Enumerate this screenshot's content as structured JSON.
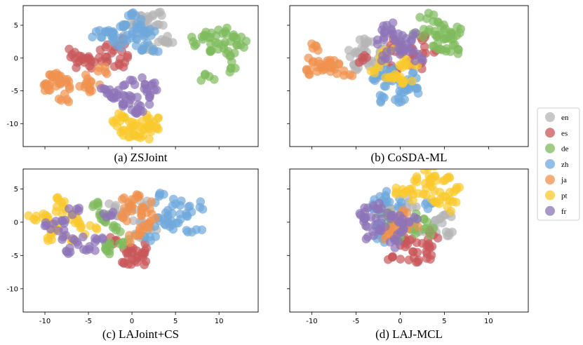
{
  "chart_data": {
    "type": "scatter",
    "shared": {
      "xlim": [
        -12.5,
        14.5
      ],
      "ylim": [
        -13.5,
        8
      ],
      "xticks": [
        "-10",
        "-5",
        "0",
        "5",
        "10"
      ],
      "yticks": [
        "5",
        "0",
        "-5",
        "-10"
      ],
      "xtick_values": [
        -10,
        -5,
        0,
        5,
        10
      ],
      "ytick_values": [
        5,
        0,
        -5,
        -10
      ]
    },
    "legend": {
      "placement": "right",
      "entries": [
        {
          "name": "en",
          "color": "#b5b5b5"
        },
        {
          "name": "es",
          "color": "#c9575a"
        },
        {
          "name": "de",
          "color": "#7fba5c"
        },
        {
          "name": "zh",
          "color": "#6fa8dc"
        },
        {
          "name": "ja",
          "color": "#f0914f"
        },
        {
          "name": "pt",
          "color": "#f9c92c"
        },
        {
          "name": "fr",
          "color": "#8d74b8"
        }
      ]
    },
    "panels": [
      {
        "caption": "(a) ZSJoint",
        "series": {
          "en": [
            [
              -1,
              3
            ],
            [
              0,
              5
            ],
            [
              2,
              6
            ],
            [
              3,
              5
            ],
            [
              3.5,
              3
            ],
            [
              1,
              6.5
            ],
            [
              2,
              4
            ],
            [
              3,
              6.8
            ],
            [
              4,
              2.5
            ],
            [
              2.5,
              1
            ]
          ],
          "es": [
            [
              -6,
              -0.5
            ],
            [
              -6.5,
              1
            ],
            [
              -5,
              0
            ],
            [
              -3,
              1.5
            ],
            [
              -2,
              -1
            ],
            [
              -1,
              -0.5
            ],
            [
              -3.5,
              -0.5
            ],
            [
              -1.5,
              2
            ],
            [
              -5.5,
              -1
            ]
          ],
          "de": [
            [
              7.5,
              2.5
            ],
            [
              8.5,
              3.5
            ],
            [
              9.5,
              3
            ],
            [
              10.5,
              2
            ],
            [
              11,
              1
            ],
            [
              12,
              3
            ],
            [
              11.5,
              -1.5
            ],
            [
              8.5,
              -2.8
            ],
            [
              9,
              1
            ],
            [
              10.5,
              4
            ],
            [
              12.5,
              2
            ]
          ],
          "zh": [
            [
              -3,
              4
            ],
            [
              -2,
              3
            ],
            [
              -1,
              5
            ],
            [
              0,
              4.5
            ],
            [
              1,
              5
            ],
            [
              0.5,
              3
            ],
            [
              1,
              2
            ],
            [
              2,
              3.5
            ],
            [
              0,
              6.5
            ],
            [
              -1,
              2.5
            ],
            [
              -2.5,
              4
            ],
            [
              2,
              1
            ],
            [
              1.5,
              4
            ],
            [
              -4,
              4
            ]
          ],
          "ja": [
            [
              -9,
              -3
            ],
            [
              -8,
              -4
            ],
            [
              -9.5,
              -5
            ],
            [
              -8.5,
              -2.5
            ],
            [
              -7.5,
              -3.5
            ],
            [
              -10,
              -4
            ],
            [
              -8,
              -6.5
            ],
            [
              -5,
              -3.5
            ],
            [
              -4.5,
              -4.5
            ],
            [
              -5.5,
              -4
            ],
            [
              -3,
              -2
            ]
          ],
          "pt": [
            [
              -2,
              -10
            ],
            [
              -1,
              -11
            ],
            [
              0,
              -12
            ],
            [
              1,
              -10.5
            ],
            [
              2,
              -11
            ],
            [
              3,
              -10
            ],
            [
              1,
              -12
            ],
            [
              -1,
              -9
            ],
            [
              2,
              -9
            ],
            [
              0,
              -10
            ]
          ],
          "fr": [
            [
              -2,
              -6
            ],
            [
              -1,
              -7
            ],
            [
              0,
              -6
            ],
            [
              1,
              -7.5
            ],
            [
              -1.5,
              -5
            ],
            [
              1.5,
              -4
            ],
            [
              2.5,
              -4.5
            ],
            [
              0,
              -8
            ],
            [
              -3,
              -5.5
            ],
            [
              2,
              -6
            ],
            [
              -0.5,
              -4
            ]
          ]
        }
      },
      {
        "caption": "(b) CoSDA-ML",
        "series": {
          "en": [
            [
              -5,
              1
            ],
            [
              -4,
              2
            ],
            [
              -3,
              0
            ],
            [
              -2,
              1.5
            ],
            [
              -4.5,
              -0.5
            ],
            [
              -3.5,
              2.5
            ],
            [
              -2.5,
              -1
            ],
            [
              -5,
              -1.5
            ]
          ],
          "es": [
            [
              -1,
              2
            ],
            [
              0,
              1
            ],
            [
              1.5,
              0.5
            ],
            [
              3,
              1
            ],
            [
              2.5,
              3
            ],
            [
              -4,
              0
            ],
            [
              2,
              -1
            ],
            [
              -0.5,
              -2
            ]
          ],
          "de": [
            [
              2.5,
              4
            ],
            [
              4,
              3.5
            ],
            [
              5,
              3
            ],
            [
              6,
              4
            ],
            [
              6.5,
              2
            ],
            [
              5.5,
              1
            ],
            [
              4.5,
              5
            ],
            [
              3,
              6
            ],
            [
              6.5,
              3.5
            ],
            [
              4,
              2
            ]
          ],
          "zh": [
            [
              -2,
              -3
            ],
            [
              -1,
              -4
            ],
            [
              0,
              -5
            ],
            [
              1,
              -4.5
            ],
            [
              1.5,
              -3
            ],
            [
              -2,
              -6
            ],
            [
              0.5,
              -6.3
            ],
            [
              -2.5,
              -3
            ],
            [
              2,
              -4.5
            ],
            [
              -1,
              -2
            ]
          ],
          "ja": [
            [
              -10,
              -1
            ],
            [
              -9,
              -1.5
            ],
            [
              -10.5,
              -2
            ],
            [
              -8.5,
              -0.5
            ],
            [
              -9.5,
              1.5
            ],
            [
              -7,
              -1
            ],
            [
              -6.5,
              -2.5
            ],
            [
              -8,
              -1
            ]
          ],
          "pt": [
            [
              -3,
              -1.5
            ],
            [
              -2,
              0
            ],
            [
              -1,
              -2.5
            ],
            [
              -0.5,
              -3
            ],
            [
              0.5,
              -3.5
            ],
            [
              1,
              -1
            ],
            [
              -1.5,
              1
            ],
            [
              0,
              -1
            ]
          ],
          "fr": [
            [
              -2,
              3
            ],
            [
              -1,
              4
            ],
            [
              0,
              3
            ],
            [
              1,
              2
            ],
            [
              1.5,
              3.5
            ],
            [
              -1.5,
              5
            ],
            [
              0,
              1
            ],
            [
              2,
              0.5
            ],
            [
              -2,
              0.5
            ]
          ]
        }
      },
      {
        "caption": "(c) LAJoint+CS",
        "series": {
          "en": [
            [
              -1,
              1
            ],
            [
              0,
              2
            ],
            [
              1,
              0
            ],
            [
              2,
              -1
            ],
            [
              -2,
              2
            ],
            [
              1.5,
              2.5
            ],
            [
              0.5,
              -2
            ]
          ],
          "es": [
            [
              0,
              -4
            ],
            [
              1,
              -5
            ],
            [
              -1,
              -6
            ],
            [
              0.5,
              -6
            ],
            [
              -2,
              -3
            ],
            [
              1.5,
              -4
            ],
            [
              -0.5,
              -5
            ]
          ],
          "de": [
            [
              -4,
              2.5
            ],
            [
              -3,
              0
            ],
            [
              -2,
              -1
            ],
            [
              -2.5,
              -3
            ],
            [
              -3,
              -4
            ],
            [
              -1,
              -3
            ],
            [
              -3.5,
              1
            ]
          ],
          "zh": [
            [
              3,
              0
            ],
            [
              4,
              1
            ],
            [
              5,
              2.8
            ],
            [
              6.5,
              1
            ],
            [
              7,
              -1
            ],
            [
              7.5,
              2.5
            ],
            [
              3,
              4
            ],
            [
              2,
              -2
            ],
            [
              4,
              -0.5
            ],
            [
              5,
              0
            ]
          ],
          "ja": [
            [
              -1,
              3
            ],
            [
              0,
              2.5
            ],
            [
              1,
              1
            ],
            [
              2,
              0
            ],
            [
              0,
              -2
            ],
            [
              -1,
              0.5
            ],
            [
              1,
              -1
            ],
            [
              2,
              2
            ],
            [
              0.5,
              4
            ]
          ],
          "pt": [
            [
              -11,
              0.5
            ],
            [
              -10,
              1
            ],
            [
              -9,
              -1
            ],
            [
              -8,
              2
            ],
            [
              -7,
              1
            ],
            [
              -6,
              0
            ],
            [
              -9.5,
              -2
            ],
            [
              -7,
              -2.5
            ],
            [
              -5,
              -1
            ],
            [
              -8,
              3
            ]
          ],
          "fr": [
            [
              -10,
              -0.5
            ],
            [
              -8,
              -2
            ],
            [
              -7,
              -4.5
            ],
            [
              -6,
              -3
            ],
            [
              -5,
              -4
            ],
            [
              -6.5,
              2
            ],
            [
              -4,
              -2.5
            ],
            [
              -8,
              0
            ],
            [
              -2.5,
              1
            ]
          ]
        }
      },
      {
        "caption": "(d) LAJ-MCL",
        "series": {
          "en": [
            [
              -1,
              2
            ],
            [
              0,
              1
            ],
            [
              1,
              3
            ],
            [
              2,
              -1
            ],
            [
              4,
              -1
            ],
            [
              4.5,
              0.5
            ],
            [
              5,
              1
            ],
            [
              5.5,
              -2
            ]
          ],
          "es": [
            [
              1,
              -3
            ],
            [
              2,
              -4
            ],
            [
              3,
              -3.5
            ],
            [
              2.5,
              -5
            ],
            [
              -1,
              -5.5
            ],
            [
              2,
              -6
            ],
            [
              3.5,
              -2
            ],
            [
              1.5,
              -2.5
            ]
          ],
          "de": [
            [
              -1,
              -0.5
            ],
            [
              0,
              -2
            ],
            [
              1,
              -1
            ],
            [
              2,
              0.5
            ],
            [
              -1.5,
              1
            ],
            [
              3,
              -1
            ]
          ],
          "zh": [
            [
              -3,
              2
            ],
            [
              -2,
              3
            ],
            [
              -2.5,
              -0.5
            ],
            [
              -1,
              4
            ],
            [
              0,
              2.5
            ],
            [
              3,
              3
            ],
            [
              -2,
              -2
            ]
          ],
          "ja": [
            [
              -1,
              -1.5
            ],
            [
              0,
              -1
            ],
            [
              1,
              -0.5
            ],
            [
              -0.5,
              0
            ],
            [
              0.5,
              1
            ],
            [
              -1.5,
              -2
            ]
          ],
          "pt": [
            [
              1,
              5
            ],
            [
              2,
              6
            ],
            [
              3,
              5
            ],
            [
              4,
              7
            ],
            [
              5,
              6
            ],
            [
              4,
              3
            ],
            [
              6,
              5
            ],
            [
              5,
              4
            ],
            [
              2,
              4
            ],
            [
              3,
              8
            ],
            [
              0,
              4.5
            ],
            [
              5.5,
              2.5
            ]
          ],
          "fr": [
            [
              -4,
              1.5
            ],
            [
              -3,
              0
            ],
            [
              -2,
              -1
            ],
            [
              -1,
              1
            ],
            [
              0,
              -1.5
            ],
            [
              1,
              0
            ],
            [
              -0.5,
              -3
            ],
            [
              -3,
              -2
            ],
            [
              0,
              0
            ],
            [
              -4,
              0.5
            ],
            [
              -2.5,
              2
            ]
          ]
        }
      }
    ]
  }
}
